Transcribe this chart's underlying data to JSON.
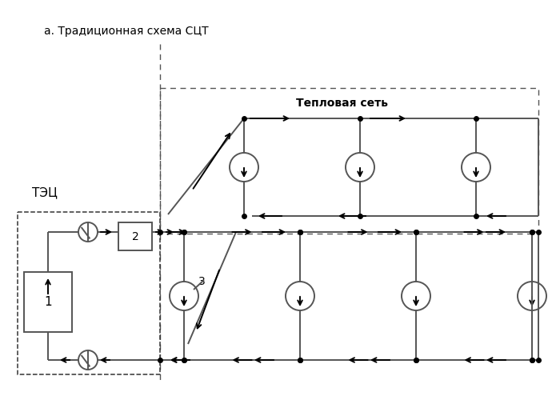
{
  "title": "а. Традиционная схема СЦТ",
  "label_teplovaya": "Тепловая сеть",
  "label_tec": "ТЭЦ",
  "label_1": "1",
  "label_2": "2",
  "label_3": "3",
  "line_color": "#555555",
  "arrow_color": "#000000",
  "bg_color": "#ffffff",
  "dot_color": "#000000",
  "figsize": [
    7.0,
    5.0
  ],
  "dpi": 100
}
